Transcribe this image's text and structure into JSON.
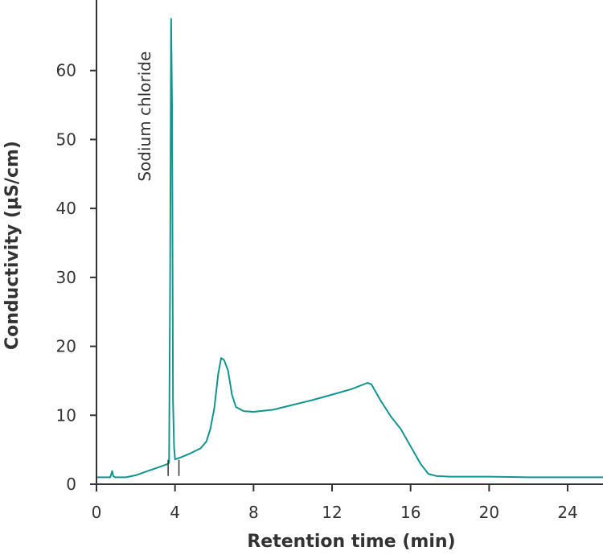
{
  "chart_data": {
    "type": "line",
    "title": "",
    "xlabel": "Retention time (min)",
    "ylabel": "Conductivity (µS/cm)",
    "xlim": [
      0,
      25.8
    ],
    "ylim": [
      0,
      70
    ],
    "xticks": [
      0,
      4,
      8,
      12,
      16,
      20,
      24
    ],
    "yticks": [
      0,
      10,
      20,
      30,
      40,
      50,
      60
    ],
    "grid": false,
    "line_color": "#13948c",
    "annotations": [
      {
        "text": "Sodium chloride",
        "x": 3.85,
        "y": 60,
        "rotation": -90
      }
    ],
    "integration_markers": [
      3.65,
      4.2
    ],
    "series": [
      {
        "name": "Conductivity",
        "points": [
          [
            0.0,
            1.0
          ],
          [
            0.7,
            1.0
          ],
          [
            0.8,
            1.9
          ],
          [
            0.85,
            1.2
          ],
          [
            0.95,
            1.0
          ],
          [
            1.5,
            1.0
          ],
          [
            2.0,
            1.3
          ],
          [
            2.5,
            1.8
          ],
          [
            3.0,
            2.3
          ],
          [
            3.4,
            2.7
          ],
          [
            3.6,
            2.9
          ],
          [
            3.7,
            3.1
          ],
          [
            3.75,
            30.0
          ],
          [
            3.8,
            67.5
          ],
          [
            3.85,
            55.0
          ],
          [
            3.9,
            12.0
          ],
          [
            3.95,
            5.5
          ],
          [
            4.0,
            3.6
          ],
          [
            4.3,
            3.9
          ],
          [
            4.8,
            4.5
          ],
          [
            5.3,
            5.2
          ],
          [
            5.6,
            6.2
          ],
          [
            5.8,
            8.0
          ],
          [
            6.0,
            11.0
          ],
          [
            6.2,
            16.0
          ],
          [
            6.35,
            18.3
          ],
          [
            6.5,
            18.0
          ],
          [
            6.7,
            16.5
          ],
          [
            6.9,
            13.0
          ],
          [
            7.1,
            11.2
          ],
          [
            7.5,
            10.6
          ],
          [
            8.0,
            10.5
          ],
          [
            9.0,
            10.8
          ],
          [
            10.0,
            11.5
          ],
          [
            11.0,
            12.2
          ],
          [
            12.0,
            13.0
          ],
          [
            13.0,
            13.8
          ],
          [
            13.8,
            14.7
          ],
          [
            14.0,
            14.5
          ],
          [
            14.5,
            12.0
          ],
          [
            15.0,
            9.8
          ],
          [
            15.5,
            8.0
          ],
          [
            16.0,
            5.5
          ],
          [
            16.5,
            3.0
          ],
          [
            16.9,
            1.5
          ],
          [
            17.3,
            1.2
          ],
          [
            18.0,
            1.1
          ],
          [
            20.0,
            1.1
          ],
          [
            22.0,
            1.0
          ],
          [
            24.0,
            1.0
          ],
          [
            25.8,
            1.0
          ]
        ]
      }
    ]
  }
}
